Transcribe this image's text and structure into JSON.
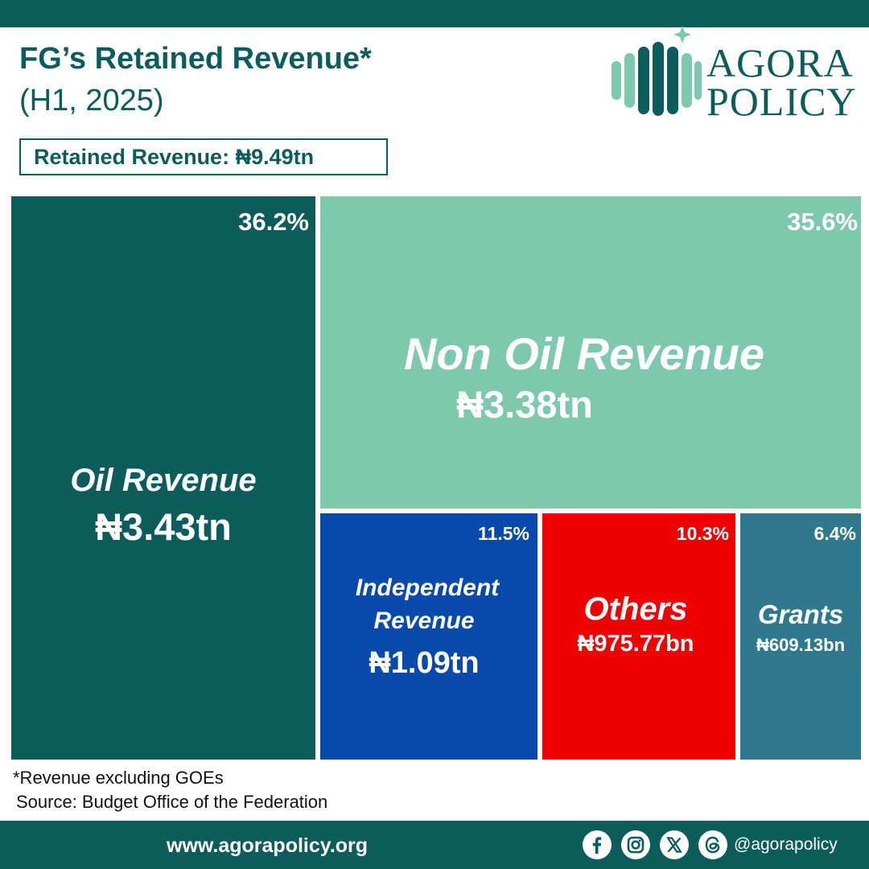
{
  "header": {
    "title": "FG’s Retained Revenue*",
    "subtitle": "(H1, 2025)",
    "total_label": "Retained Revenue: ₦9.49tn"
  },
  "logo": {
    "line1": "AGORA",
    "line2": "POLICY"
  },
  "colors": {
    "brand": "#0d5c5c",
    "oil": "#0d5c5c",
    "non_oil": "#7ec8ad",
    "independent": "#0849ac",
    "others": "#ee0000",
    "grants": "#2e7a8c"
  },
  "chart_data": {
    "type": "treemap",
    "title": "FG’s Retained Revenue*",
    "total": "₦9.49tn",
    "series": [
      {
        "name": "Oil Revenue",
        "value_label": "₦3.43tn",
        "value": 3.43,
        "unit": "tn",
        "pct": "36.2%",
        "color": "#0d5c5c"
      },
      {
        "name": "Non Oil Revenue",
        "value_label": "₦3.38tn",
        "value": 3.38,
        "unit": "tn",
        "pct": "35.6%",
        "color": "#7ec8ad"
      },
      {
        "name_line1": "Independent",
        "name_line2": "Revenue",
        "value_label": "₦1.09tn",
        "value": 1.09,
        "unit": "tn",
        "pct": "11.5%",
        "color": "#0849ac"
      },
      {
        "name": "Others",
        "value_label": "₦975.77bn",
        "value": 0.97577,
        "unit": "tn",
        "pct": "10.3%",
        "color": "#ee0000"
      },
      {
        "name": "Grants",
        "value_label": "₦609.13bn",
        "value": 0.60913,
        "unit": "tn",
        "pct": "6.4%",
        "color": "#2e7a8c"
      }
    ]
  },
  "footer": {
    "note": "*Revenue excluding GOEs",
    "source": "Source: Budget Office of the Federation",
    "website": "www.agorapolicy.org",
    "handle": "@agorapolicy",
    "icons": [
      "facebook-icon",
      "instagram-icon",
      "x-icon",
      "threads-icon"
    ]
  }
}
